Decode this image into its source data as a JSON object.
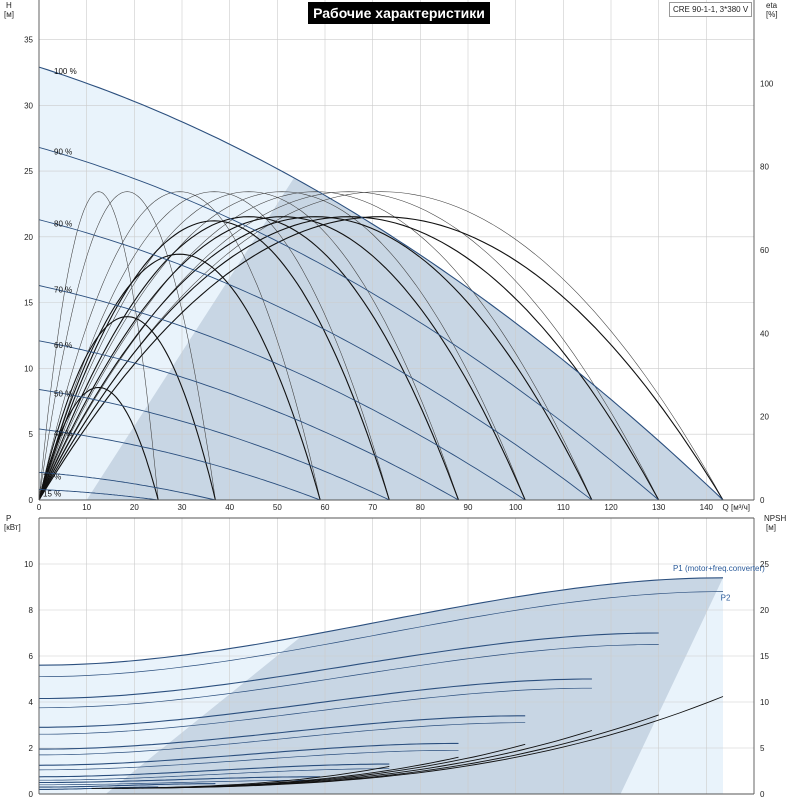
{
  "header": {
    "title": "Рабочие характеристики",
    "model": "CRE 90-1-1, 3*380 V"
  },
  "colors": {
    "curve": "#2b4f7e",
    "thin": "#3d3d3d",
    "fill_dark": "#c8d6e4",
    "fill_light": "#e9f3fb",
    "grid": "#cccccc",
    "label_blue": "#2b5b9a"
  },
  "chart_data": [
    {
      "type": "line",
      "panel": "top",
      "left_axis": {
        "label_top": "H",
        "label_unit": "[м]",
        "ylim": [
          0,
          38
        ],
        "ticks": [
          0,
          5,
          10,
          15,
          20,
          25,
          30,
          35
        ]
      },
      "right_axis": {
        "label_top": "eta",
        "label_unit": "[%]",
        "ylim": [
          0,
          120
        ],
        "ticks": [
          0,
          20,
          40,
          60,
          80,
          100
        ]
      },
      "x_axis": {
        "label": "Q [м³/ч]",
        "xlim": [
          0,
          150
        ],
        "ticks": [
          0,
          10,
          20,
          30,
          40,
          50,
          60,
          70,
          80,
          90,
          100,
          110,
          120,
          130,
          140
        ]
      },
      "grid": true,
      "speed_curves": [
        {
          "label": "100 %",
          "h0": 32.9,
          "qmax": 143.5
        },
        {
          "label": "90 %",
          "h0": 26.8,
          "qmax": 130
        },
        {
          "label": "80 %",
          "h0": 21.3,
          "qmax": 116
        },
        {
          "label": "70 %",
          "h0": 16.3,
          "qmax": 102
        },
        {
          "label": "60 %",
          "h0": 12.1,
          "qmax": 88
        },
        {
          "label": "50 %",
          "h0": 8.4,
          "qmax": 73.5
        },
        {
          "label": "40 %",
          "h0": 5.4,
          "qmax": 59
        },
        {
          "label": "25 %",
          "h0": 2.1,
          "qmax": 37
        },
        {
          "label": "15 %",
          "h0": 0.8,
          "qmax": 25
        }
      ],
      "efficiency_curves": [
        {
          "qmax": 143.5,
          "peak": 74
        },
        {
          "qmax": 130,
          "peak": 74
        },
        {
          "qmax": 116,
          "peak": 74
        },
        {
          "qmax": 102,
          "peak": 74
        },
        {
          "qmax": 88,
          "peak": 74
        },
        {
          "qmax": 73.5,
          "peak": 74
        },
        {
          "qmax": 59,
          "peak": 74
        },
        {
          "qmax": 37,
          "peak": 74
        },
        {
          "qmax": 25,
          "peak": 74
        },
        {
          "qmax": 143.5,
          "peak": 68
        },
        {
          "qmax": 130,
          "peak": 68
        },
        {
          "qmax": 116,
          "peak": 68
        },
        {
          "qmax": 102,
          "peak": 68
        },
        {
          "qmax": 88,
          "peak": 68
        },
        {
          "qmax": 73.5,
          "peak": 67
        },
        {
          "qmax": 59,
          "peak": 59
        },
        {
          "qmax": 37,
          "peak": 44
        },
        {
          "qmax": 25,
          "peak": 27
        }
      ]
    },
    {
      "type": "line",
      "panel": "bottom",
      "left_axis": {
        "label_top": "P",
        "label_unit": "[кВт]",
        "ylim": [
          0,
          12
        ],
        "ticks": [
          0,
          2,
          4,
          6,
          8,
          10
        ]
      },
      "right_axis": {
        "label_top": "NPSH",
        "label_unit": "[м]",
        "ylim": [
          0,
          30
        ],
        "ticks": [
          0,
          5,
          10,
          15,
          20,
          25
        ]
      },
      "x_axis": {
        "xlim": [
          0,
          150
        ]
      },
      "grid": true,
      "labels": {
        "p1": "P1 (motor+freq.converter)",
        "p2": "P2"
      },
      "power_curves": [
        {
          "type": "P1",
          "qmax": 143.5,
          "p0": 5.6,
          "p1": 9.4
        },
        {
          "type": "P2",
          "qmax": 143.5,
          "p0": 5.1,
          "p1": 8.8
        },
        {
          "type": "P1",
          "qmax": 130,
          "p0": 4.15,
          "p1": 7.0
        },
        {
          "type": "P2",
          "qmax": 130,
          "p0": 3.75,
          "p1": 6.5
        },
        {
          "type": "P1",
          "qmax": 116,
          "p0": 2.9,
          "p1": 5.0
        },
        {
          "type": "P2",
          "qmax": 116,
          "p0": 2.6,
          "p1": 4.6
        },
        {
          "type": "P1",
          "qmax": 102,
          "p0": 1.95,
          "p1": 3.4
        },
        {
          "type": "P2",
          "qmax": 102,
          "p0": 1.7,
          "p1": 3.1
        },
        {
          "type": "P1",
          "qmax": 88,
          "p0": 1.25,
          "p1": 2.2
        },
        {
          "type": "P2",
          "qmax": 88,
          "p0": 1.05,
          "p1": 1.9
        },
        {
          "type": "P1",
          "qmax": 73.5,
          "p0": 0.75,
          "p1": 1.3
        },
        {
          "type": "P2",
          "qmax": 73.5,
          "p0": 0.6,
          "p1": 1.1
        },
        {
          "type": "P1",
          "qmax": 59,
          "p0": 0.5,
          "p1": 0.75
        },
        {
          "type": "P2",
          "qmax": 59,
          "p0": 0.4,
          "p1": 0.6
        },
        {
          "type": "P1",
          "qmax": 37,
          "p0": 0.3,
          "p1": 0.45
        },
        {
          "type": "P1",
          "qmax": 25,
          "p0": 0.2,
          "p1": 0.3
        }
      ],
      "npsh_curves": [
        {
          "qmax": 143.5,
          "end": 10.6
        },
        {
          "qmax": 130,
          "end": 8.6
        },
        {
          "qmax": 116,
          "end": 6.9
        },
        {
          "qmax": 102,
          "end": 5.4
        },
        {
          "qmax": 88,
          "end": 4.0
        },
        {
          "qmax": 73.5,
          "end": 3.0
        }
      ]
    }
  ]
}
